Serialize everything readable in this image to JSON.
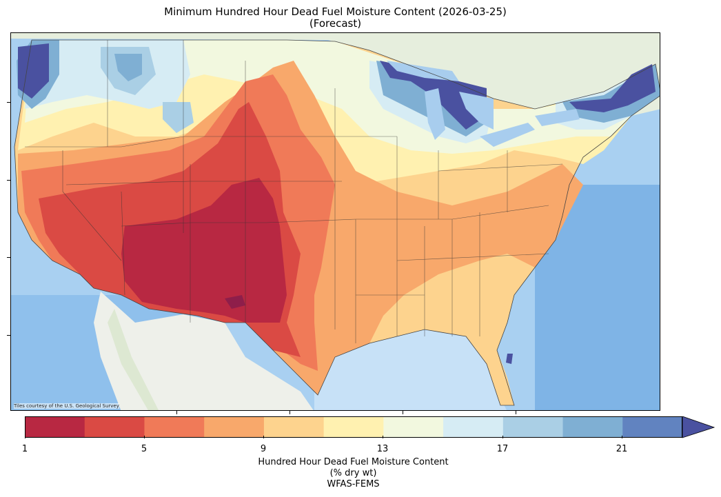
{
  "title_line1": "Minimum Hundred Hour Dead Fuel Moisture Content (2026-03-25)",
  "title_line2": "(Forecast)",
  "attribution": "Tiles courtesy of the U.S. Geological Survey",
  "colorbar": {
    "ticks": [
      "1",
      "5",
      "9",
      "13",
      "17",
      "21"
    ],
    "label_line1": "Hundred Hour Dead Fuel Moisture Content",
    "label_line2": "(% dry wt)",
    "label_line3": "WFAS-FEMS",
    "bin_colors": [
      "#b82842",
      "#da4a44",
      "#f07a58",
      "#f8a86b",
      "#fdd38e",
      "#fff1b0",
      "#f2f8df",
      "#d6ecf4",
      "#aacfe5",
      "#7fafd3",
      "#6183c0"
    ],
    "extend_color": "#4a51a0"
  },
  "colors": {
    "ocean": "#9cc9ef",
    "land_base": "#eaeee4"
  }
}
